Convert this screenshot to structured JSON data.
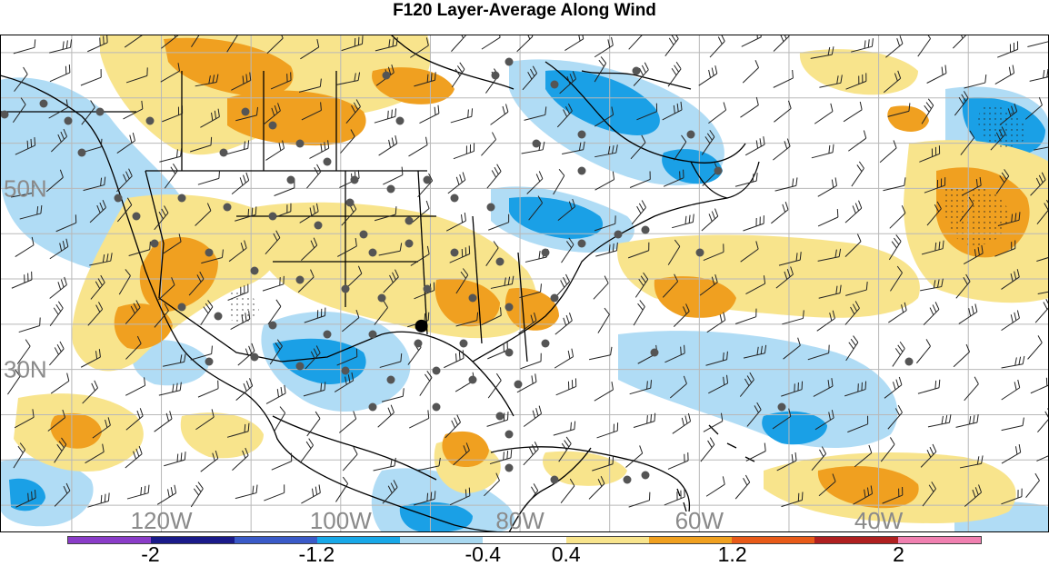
{
  "title": "F120 Layer-Average Along Wind",
  "colors": {
    "deep_neg": "#1aa0e6",
    "light_neg": "#b0dcf5",
    "light_pos": "#f8e48c",
    "deep_pos": "#f0a020",
    "land_bg": "#ffffff",
    "grid": "#b8b8b8",
    "coast": "#000000",
    "station": "#555555",
    "highlight_station": "#000000"
  },
  "colorbar": {
    "swatches": [
      "#8a3cc8",
      "#1a1a8a",
      "#3a5ac8",
      "#18a8e8",
      "#a8d8f0",
      "#ffffff",
      "#f8e48c",
      "#f0a020",
      "#e85a18",
      "#b02020",
      "#f080b0"
    ],
    "labels": [
      {
        "text": "-2",
        "value": -2
      },
      {
        "text": "-1.2",
        "value": -1.2
      },
      {
        "text": "-0.4",
        "value": -0.4
      },
      {
        "text": "0.4",
        "value": 0.4
      },
      {
        "text": "1.2",
        "value": 1.2
      },
      {
        "text": "2",
        "value": 2
      }
    ]
  },
  "axes": {
    "lat_labels": [
      {
        "text": "50N",
        "lat": 50
      },
      {
        "text": "30N",
        "lat": 30
      }
    ],
    "lon_labels": [
      {
        "text": "120W",
        "lon": -120
      },
      {
        "text": "100W",
        "lon": -100
      },
      {
        "text": "80W",
        "lon": -80
      },
      {
        "text": "60W",
        "lon": -60
      },
      {
        "text": "40W",
        "lon": -40
      }
    ]
  },
  "map": {
    "lon_range": [
      -138,
      -21
    ],
    "lat_range": [
      12,
      67
    ],
    "grid_lons": [
      -130,
      -120,
      -110,
      -100,
      -90,
      -80,
      -70,
      -60,
      -50,
      -40,
      -30
    ],
    "grid_lats": [
      15,
      20,
      25,
      30,
      35,
      40,
      45,
      50,
      55,
      60,
      65
    ],
    "highlight_station": {
      "lon": -91,
      "lat": 34.8
    }
  }
}
